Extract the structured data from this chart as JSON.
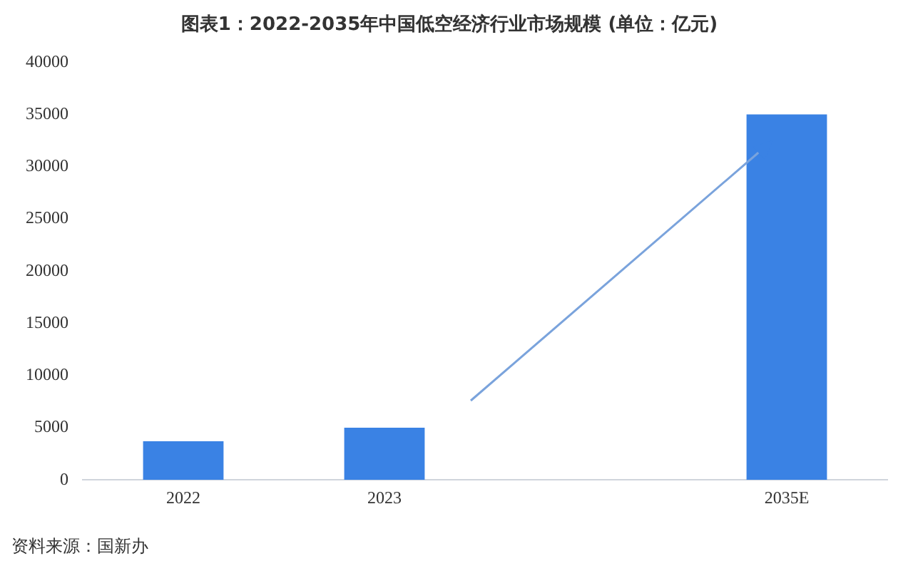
{
  "chart_data": {
    "type": "bar",
    "title": "图表1：2022-2035年中国低空经济行业市场规模 (单位：亿元)",
    "categories": [
      "2022",
      "2023",
      null,
      "2035E"
    ],
    "values": [
      3700,
      5000,
      null,
      35000
    ],
    "color": "#3a82e4",
    "ylim": [
      0,
      40000
    ],
    "yticks": [
      0,
      5000,
      10000,
      15000,
      20000,
      25000,
      30000,
      35000,
      40000
    ],
    "grid": false,
    "legend": false,
    "annotations": [
      "资料来源：国新办"
    ]
  }
}
